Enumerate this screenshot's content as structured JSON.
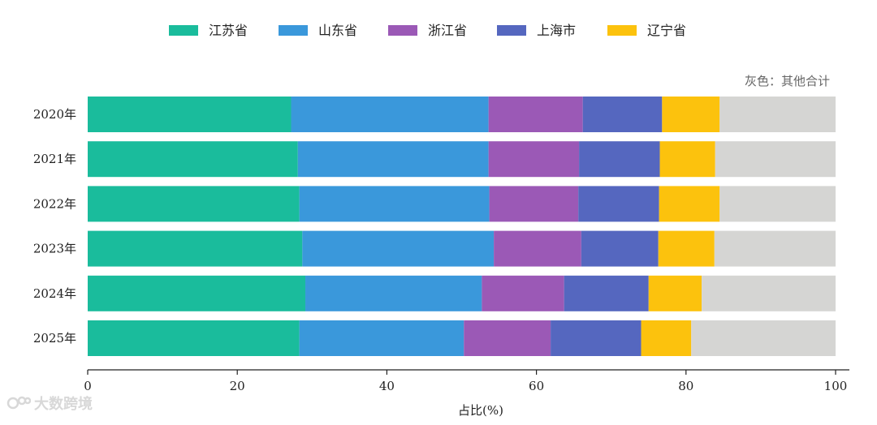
{
  "chart_data": {
    "type": "bar",
    "orientation": "horizontal",
    "stacked": true,
    "categories": [
      "2020年",
      "2021年",
      "2022年",
      "2023年",
      "2024年",
      "2025年"
    ],
    "series": [
      {
        "name": "江苏省",
        "color": "#1abc9c",
        "values": [
          27.2,
          28.1,
          28.3,
          28.7,
          29.1,
          28.3
        ]
      },
      {
        "name": "山东省",
        "color": "#3a98db",
        "values": [
          26.4,
          25.5,
          25.4,
          25.6,
          23.6,
          22.0
        ]
      },
      {
        "name": "浙江省",
        "color": "#9b59b6",
        "values": [
          12.6,
          12.1,
          11.9,
          11.7,
          11.0,
          11.6
        ]
      },
      {
        "name": "上海市",
        "color": "#5567bf",
        "values": [
          10.6,
          10.8,
          10.8,
          10.3,
          11.3,
          12.1
        ]
      },
      {
        "name": "辽宁省",
        "color": "#fcc20d",
        "values": [
          7.7,
          7.4,
          8.1,
          7.5,
          7.1,
          6.7
        ]
      },
      {
        "name": "",
        "color": "#d5d5d3",
        "values": [
          15.5,
          16.1,
          15.5,
          16.2,
          17.9,
          19.3
        ]
      }
    ],
    "xlabel": "占比(%)",
    "ylabel": "",
    "xlim": [
      0,
      100
    ],
    "xticks": [
      0,
      20,
      40,
      60,
      80,
      100
    ],
    "annotation": "灰色：其他合计",
    "legend_position": "top",
    "grid": false
  },
  "watermark": {
    "text": "大数跨境"
  }
}
